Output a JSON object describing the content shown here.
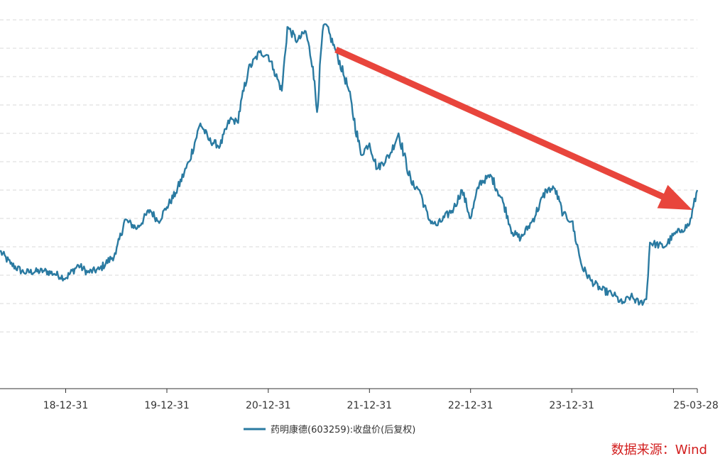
{
  "chart_data": {
    "type": "line",
    "legend_position": "bottom-center",
    "grid": "horizontal-dashed",
    "y_tick_labels_visible": false,
    "x_tick_labels": [
      "18-12-31",
      "19-12-31",
      "20-12-31",
      "21-12-31",
      "22-12-31",
      "23-12-31",
      "25-03-28"
    ],
    "series": [
      {
        "name": "药明康德(603259):收盘价(后复权)",
        "color": "#2a7aa1",
        "x": [
          "2018-05-08",
          "2018-06-15",
          "2018-08-01",
          "2018-10-15",
          "2018-11-20",
          "2018-12-31",
          "2019-02-15",
          "2019-03-20",
          "2019-05-01",
          "2019-06-30",
          "2019-08-01",
          "2019-09-15",
          "2019-10-31",
          "2019-11-30",
          "2019-12-31",
          "2020-02-01",
          "2020-03-20",
          "2020-04-30",
          "2020-06-01",
          "2020-07-10",
          "2020-08-15",
          "2020-09-10",
          "2020-10-20",
          "2020-11-30",
          "2020-12-31",
          "2021-01-20",
          "2021-02-18",
          "2021-03-10",
          "2021-04-15",
          "2021-05-15",
          "2021-06-10",
          "2021-06-25",
          "2021-07-15",
          "2021-07-25",
          "2021-09-01",
          "2021-10-15",
          "2021-11-30",
          "2021-12-31",
          "2022-01-28",
          "2022-03-15",
          "2022-04-15",
          "2022-05-31",
          "2022-06-30",
          "2022-07-31",
          "2022-08-31",
          "2022-10-31",
          "2022-11-30",
          "2022-12-31",
          "2023-02-01",
          "2023-03-15",
          "2023-04-30",
          "2023-05-31",
          "2023-06-30",
          "2023-08-10",
          "2023-09-30",
          "2023-10-31",
          "2023-11-30",
          "2023-12-31",
          "2024-02-06",
          "2024-03-10",
          "2024-04-15",
          "2024-05-31",
          "2024-06-30",
          "2024-07-31",
          "2024-09-01",
          "2024-09-25",
          "2024-10-08",
          "2024-11-30",
          "2024-12-31",
          "2025-01-31",
          "2025-02-28",
          "2025-03-28"
        ],
        "values": [
          57,
          48,
          42,
          43,
          41,
          38,
          47,
          42,
          44,
          55,
          79,
          73,
          86,
          78,
          88,
          98,
          120,
          147,
          135,
          131,
          150,
          148,
          185,
          197,
          195,
          185,
          170,
          215,
          205,
          212,
          187,
          155,
          212,
          217,
          198,
          172,
          125,
          133,
          115,
          125,
          140,
          105,
          100,
          80,
          75,
          87,
          100,
          80,
          105,
          110,
          90,
          70,
          66,
          78,
          100,
          101,
          83,
          78,
          46,
          36,
          30,
          26,
          20,
          25,
          20,
          23,
          63,
          60,
          68,
          72,
          76,
          100
        ]
      }
    ],
    "ylim": [
      0,
      220
    ],
    "y_gridlines": [
      0,
      20,
      40,
      60,
      80,
      100,
      120,
      140,
      160,
      180,
      200,
      220
    ],
    "annotations": [
      {
        "type": "arrow",
        "color": "#e8453c",
        "from_date": "2021-09-01",
        "to_date": "2025-03-10",
        "meaning": "downtrend"
      }
    ]
  },
  "legend": {
    "label": "药明康德(603259):收盘价(后复权)"
  },
  "source": {
    "text": "数据来源：Wind",
    "color": "#d21e1e"
  }
}
